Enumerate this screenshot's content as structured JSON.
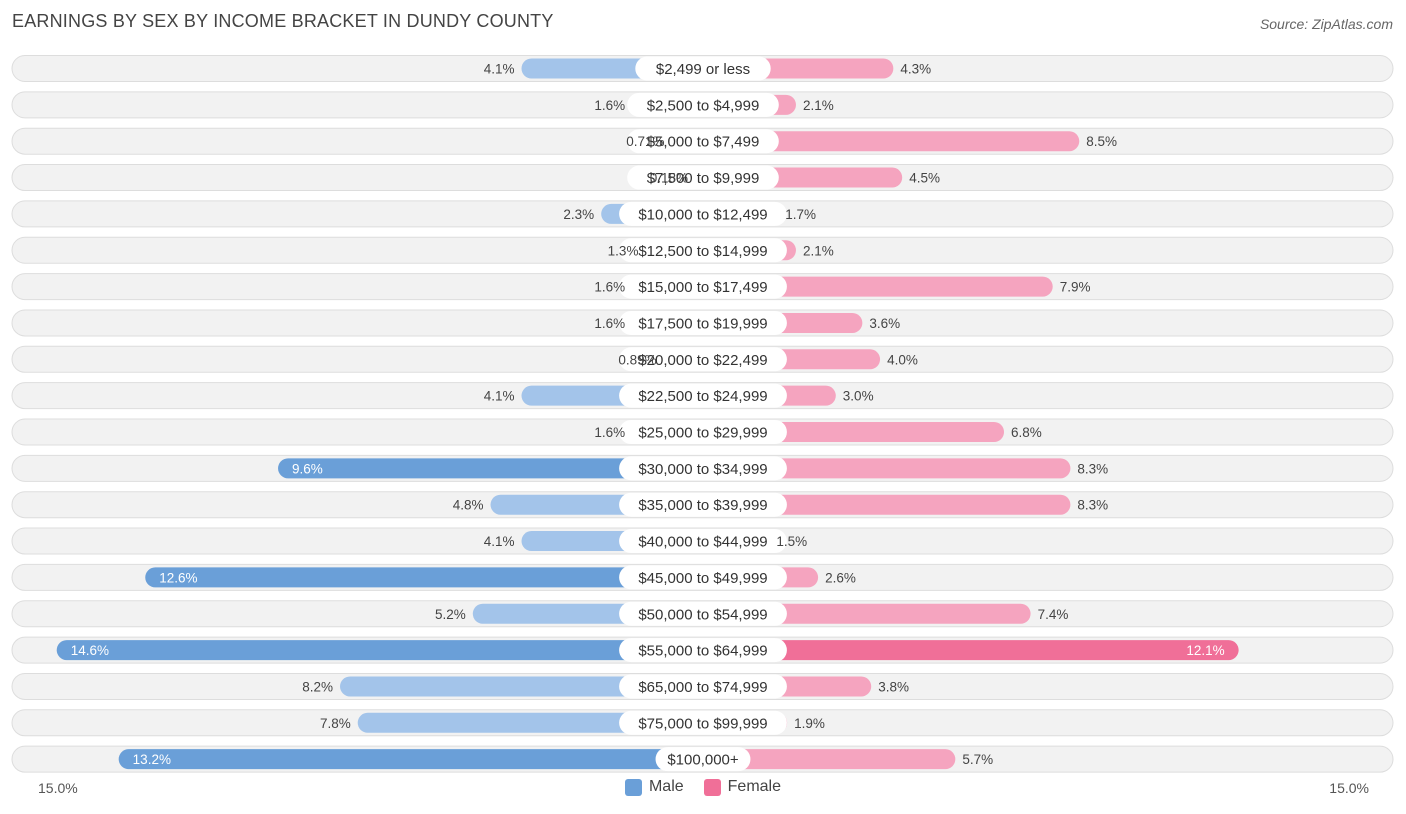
{
  "title": "EARNINGS BY SEX BY INCOME BRACKET IN DUNDY COUNTY",
  "source": "Source: ZipAtlas.com",
  "colors": {
    "male": "#a3c4ea",
    "male_strong": "#6a9fd8",
    "female": "#f5a4bf",
    "female_strong": "#f06f98",
    "row_bg": "#f2f2f2",
    "row_border": "#dddddd"
  },
  "legend": {
    "male": "Male",
    "female": "Female"
  },
  "axis": {
    "left_label": "15.0%",
    "right_label": "15.0%"
  },
  "chart_data": {
    "type": "bar",
    "orientation": "horizontal-diverging",
    "title": "EARNINGS BY SEX BY INCOME BRACKET IN DUNDY COUNTY",
    "xlim": [
      0,
      15.0
    ],
    "unit": "%",
    "categories": [
      "$2,499 or less",
      "$2,500 to $4,999",
      "$5,000 to $7,499",
      "$7,500 to $9,999",
      "$10,000 to $12,499",
      "$12,500 to $14,999",
      "$15,000 to $17,499",
      "$17,500 to $19,999",
      "$20,000 to $22,499",
      "$22,500 to $24,999",
      "$25,000 to $29,999",
      "$30,000 to $34,999",
      "$35,000 to $39,999",
      "$40,000 to $44,999",
      "$45,000 to $49,999",
      "$50,000 to $54,999",
      "$55,000 to $64,999",
      "$65,000 to $74,999",
      "$75,000 to $99,999",
      "$100,000+"
    ],
    "series": [
      {
        "name": "Male",
        "values": [
          4.1,
          1.6,
          0.71,
          0.18,
          2.3,
          1.3,
          1.6,
          1.6,
          0.89,
          4.1,
          1.6,
          9.6,
          4.8,
          4.1,
          12.6,
          5.2,
          14.6,
          8.2,
          7.8,
          13.2
        ],
        "labels": [
          "4.1%",
          "1.6%",
          "0.71%",
          "0.18%",
          "2.3%",
          "1.3%",
          "1.6%",
          "1.6%",
          "0.89%",
          "4.1%",
          "1.6%",
          "9.6%",
          "4.8%",
          "4.1%",
          "12.6%",
          "5.2%",
          "14.6%",
          "8.2%",
          "7.8%",
          "13.2%"
        ]
      },
      {
        "name": "Female",
        "values": [
          4.3,
          2.1,
          8.5,
          4.5,
          1.7,
          2.1,
          7.9,
          3.6,
          4.0,
          3.0,
          6.8,
          8.3,
          8.3,
          1.5,
          2.6,
          7.4,
          12.1,
          3.8,
          1.9,
          5.7
        ],
        "labels": [
          "4.3%",
          "2.1%",
          "8.5%",
          "4.5%",
          "1.7%",
          "2.1%",
          "7.9%",
          "3.6%",
          "4.0%",
          "3.0%",
          "6.8%",
          "8.3%",
          "8.3%",
          "1.5%",
          "2.6%",
          "7.4%",
          "12.1%",
          "3.8%",
          "1.9%",
          "5.7%"
        ]
      }
    ]
  }
}
